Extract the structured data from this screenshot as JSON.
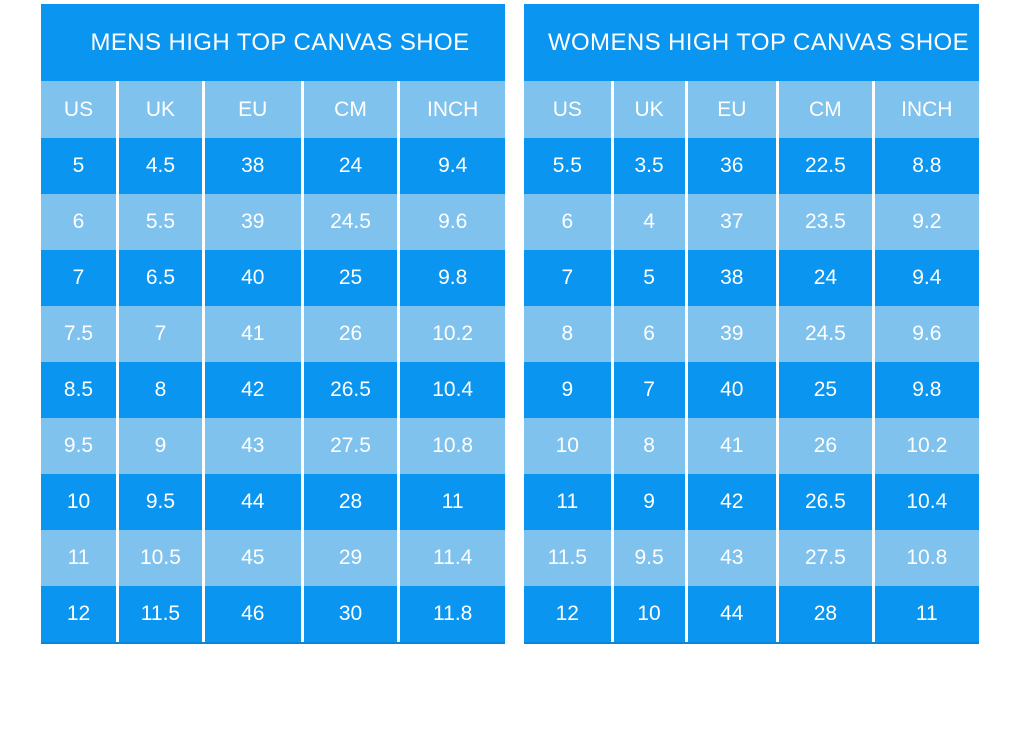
{
  "colors": {
    "dark_blue": "#0995f0",
    "light_blue": "#7fc2ee",
    "text": "#ffffff",
    "page_background": "#ffffff"
  },
  "chart_data": [
    {
      "type": "table",
      "title": "MENS HIGH TOP CANVAS SHOE",
      "columns": [
        "US",
        "UK",
        "EU",
        "CM",
        "INCH"
      ],
      "rows": [
        [
          "5",
          "4.5",
          "38",
          "24",
          "9.4"
        ],
        [
          "6",
          "5.5",
          "39",
          "24.5",
          "9.6"
        ],
        [
          "7",
          "6.5",
          "40",
          "25",
          "9.8"
        ],
        [
          "7.5",
          "7",
          "41",
          "26",
          "10.2"
        ],
        [
          "8.5",
          "8",
          "42",
          "26.5",
          "10.4"
        ],
        [
          "9.5",
          "9",
          "43",
          "27.5",
          "10.8"
        ],
        [
          "10",
          "9.5",
          "44",
          "28",
          "11"
        ],
        [
          "11",
          "10.5",
          "45",
          "29",
          "11.4"
        ],
        [
          "12",
          "11.5",
          "46",
          "30",
          "11.8"
        ]
      ],
      "row_style_note": "rows alternate dark blue (odd) and light blue (even)"
    },
    {
      "type": "table",
      "title": "WOMENS HIGH TOP CANVAS SHOE",
      "columns": [
        "US",
        "UK",
        "EU",
        "CM",
        "INCH"
      ],
      "rows": [
        [
          "5.5",
          "3.5",
          "36",
          "22.5",
          "8.8"
        ],
        [
          "6",
          "4",
          "37",
          "23.5",
          "9.2"
        ],
        [
          "7",
          "5",
          "38",
          "24",
          "9.4"
        ],
        [
          "8",
          "6",
          "39",
          "24.5",
          "9.6"
        ],
        [
          "9",
          "7",
          "40",
          "25",
          "9.8"
        ],
        [
          "10",
          "8",
          "41",
          "26",
          "10.2"
        ],
        [
          "11",
          "9",
          "42",
          "26.5",
          "10.4"
        ],
        [
          "11.5",
          "9.5",
          "43",
          "27.5",
          "10.8"
        ],
        [
          "12",
          "10",
          "44",
          "28",
          "11"
        ]
      ],
      "row_style_note": "rows alternate dark blue (odd) and light blue (even)"
    }
  ]
}
